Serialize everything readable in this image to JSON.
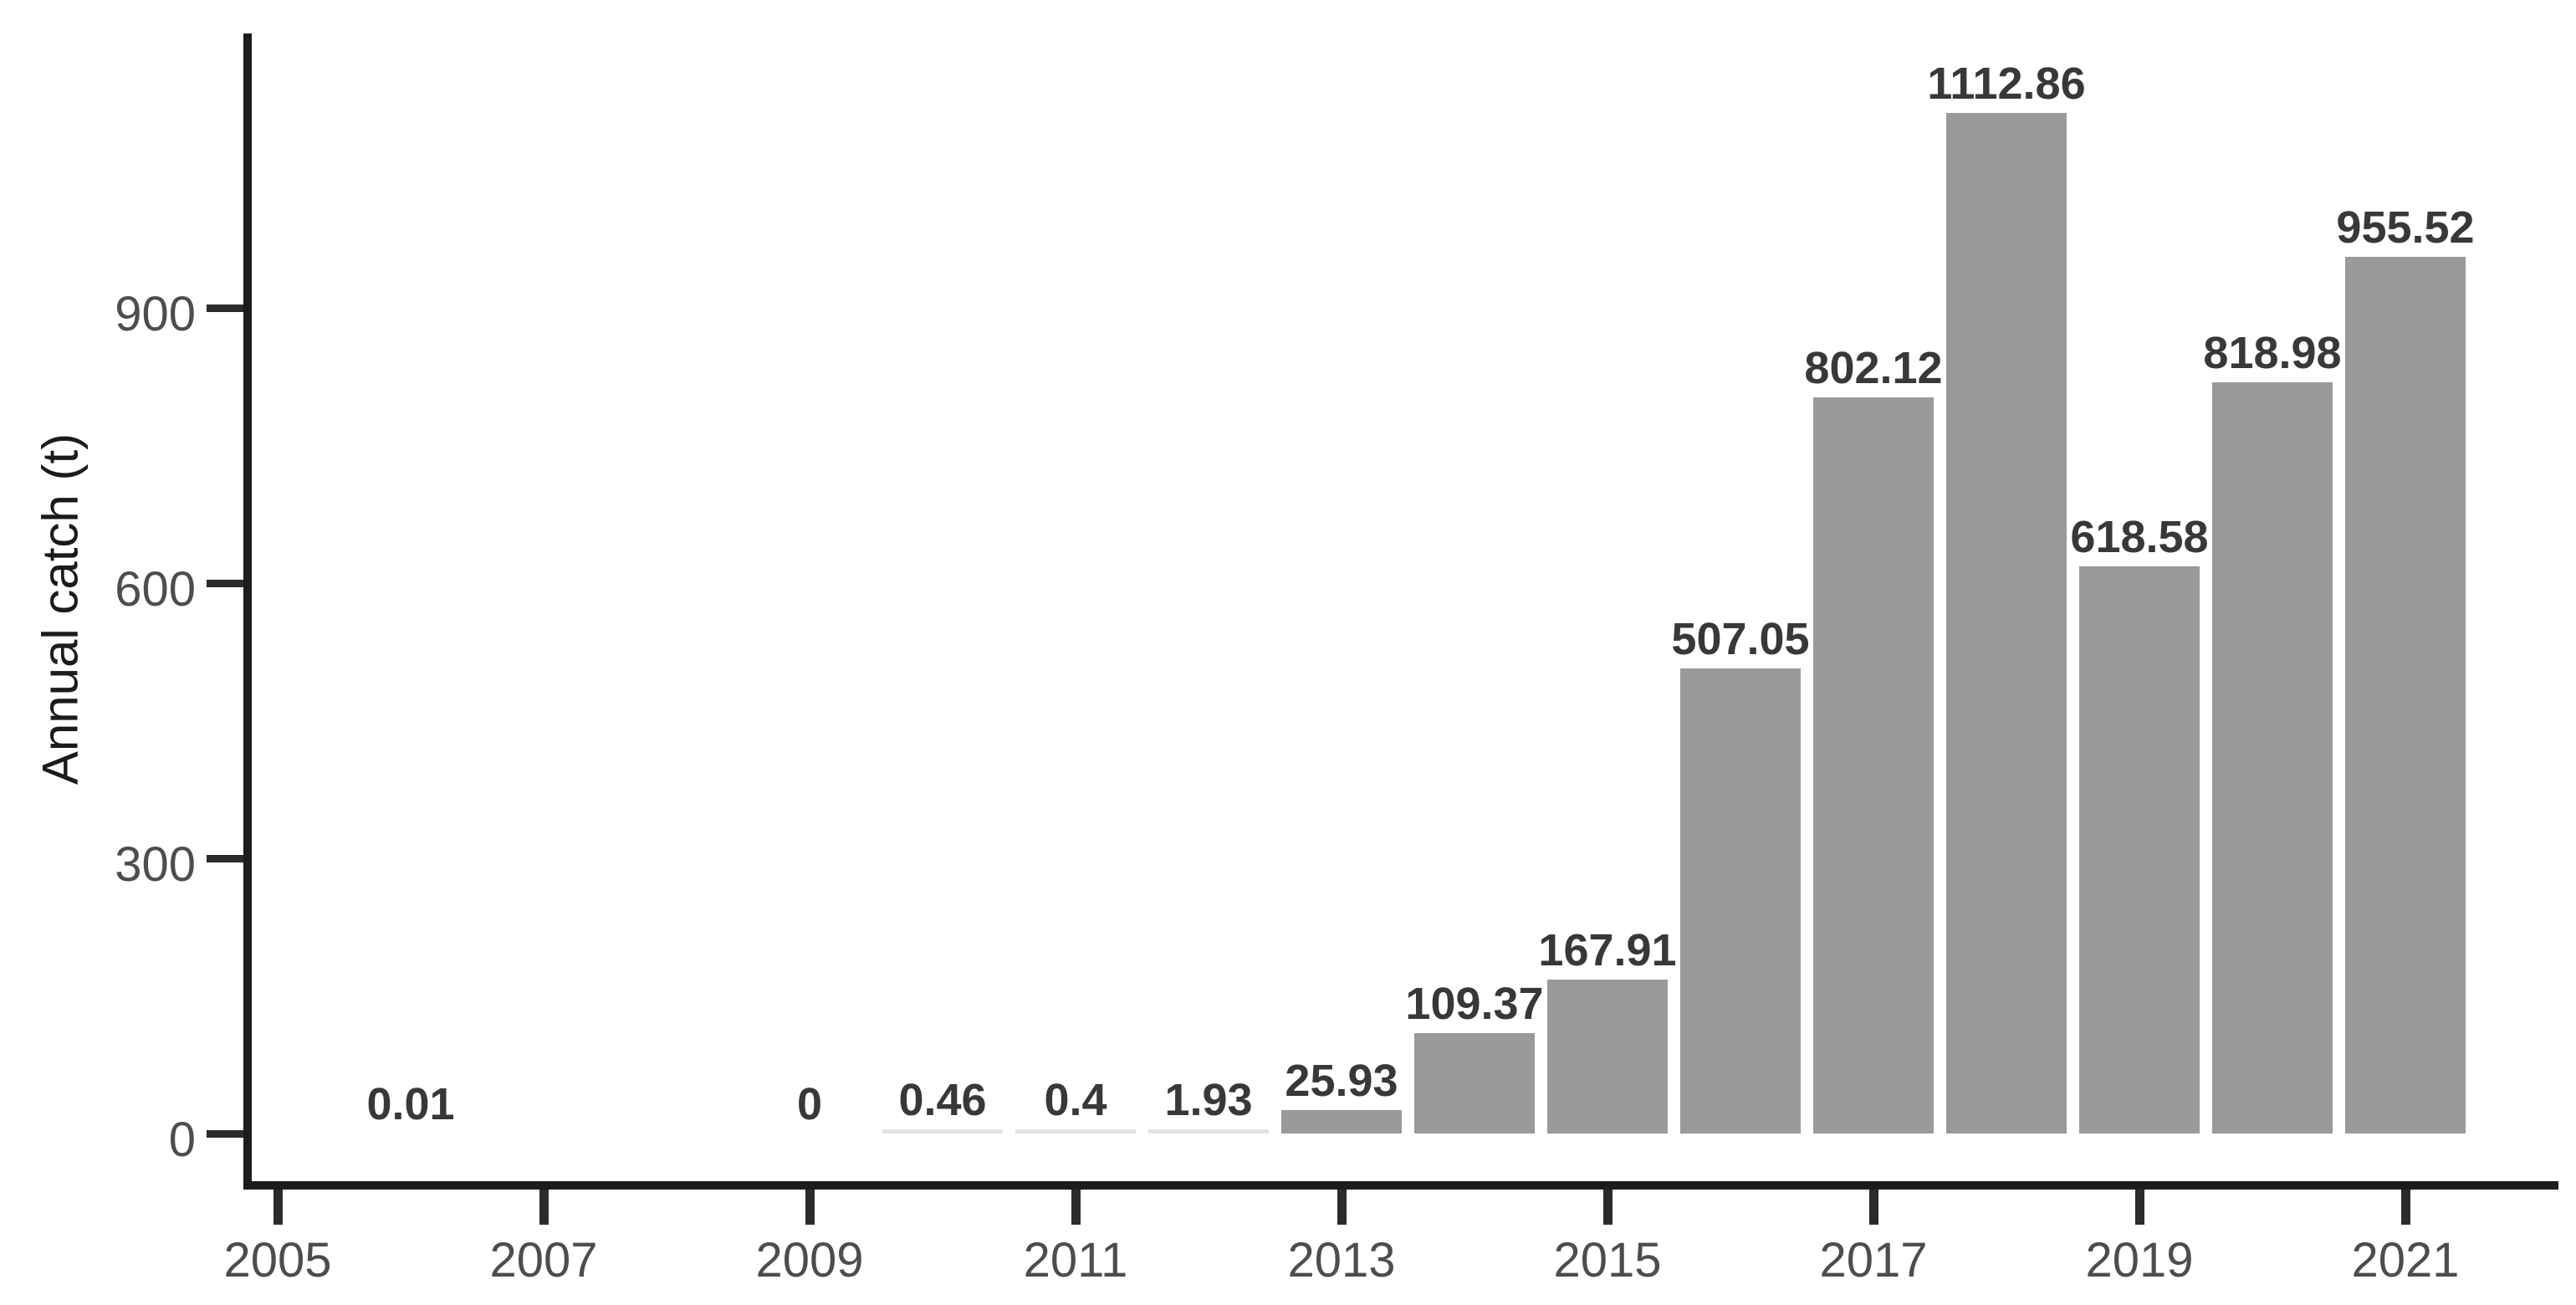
{
  "chart_data": {
    "type": "bar",
    "title": "",
    "xlabel": "",
    "ylabel": "Annual catch (t)",
    "x": [
      2006,
      2009,
      2010,
      2011,
      2012,
      2013,
      2014,
      2015,
      2016,
      2017,
      2018,
      2019,
      2020,
      2021
    ],
    "values": [
      0.01,
      0,
      0.46,
      0.4,
      1.93,
      25.93,
      109.37,
      167.91,
      507.05,
      802.12,
      1112.86,
      618.58,
      818.98,
      955.52
    ],
    "bar_labels": [
      "0.01",
      "0",
      "0.46",
      "0.4",
      "1.93",
      "25.93",
      "109.37",
      "167.91",
      "507.05",
      "802.12",
      "1112.86",
      "618.58",
      "818.98",
      "955.52"
    ],
    "x_ticks": [
      2005,
      2007,
      2009,
      2011,
      2013,
      2015,
      2017,
      2019,
      2021
    ],
    "y_ticks": [
      0,
      300,
      600,
      900
    ],
    "x_range": [
      2004.4,
      2022.2
    ],
    "ylim": [
      0,
      1200
    ],
    "grid": false,
    "legend": false,
    "colors": {
      "bar_fill": "#9a9a9a",
      "tiny_bar_fill": "#e3e3e3",
      "bar_label": "#383838",
      "axis_text": "#4d4d4d",
      "axis_line": "#1c1c1c",
      "axis_title": "#1b1b1b",
      "background": "#ffffff"
    }
  }
}
